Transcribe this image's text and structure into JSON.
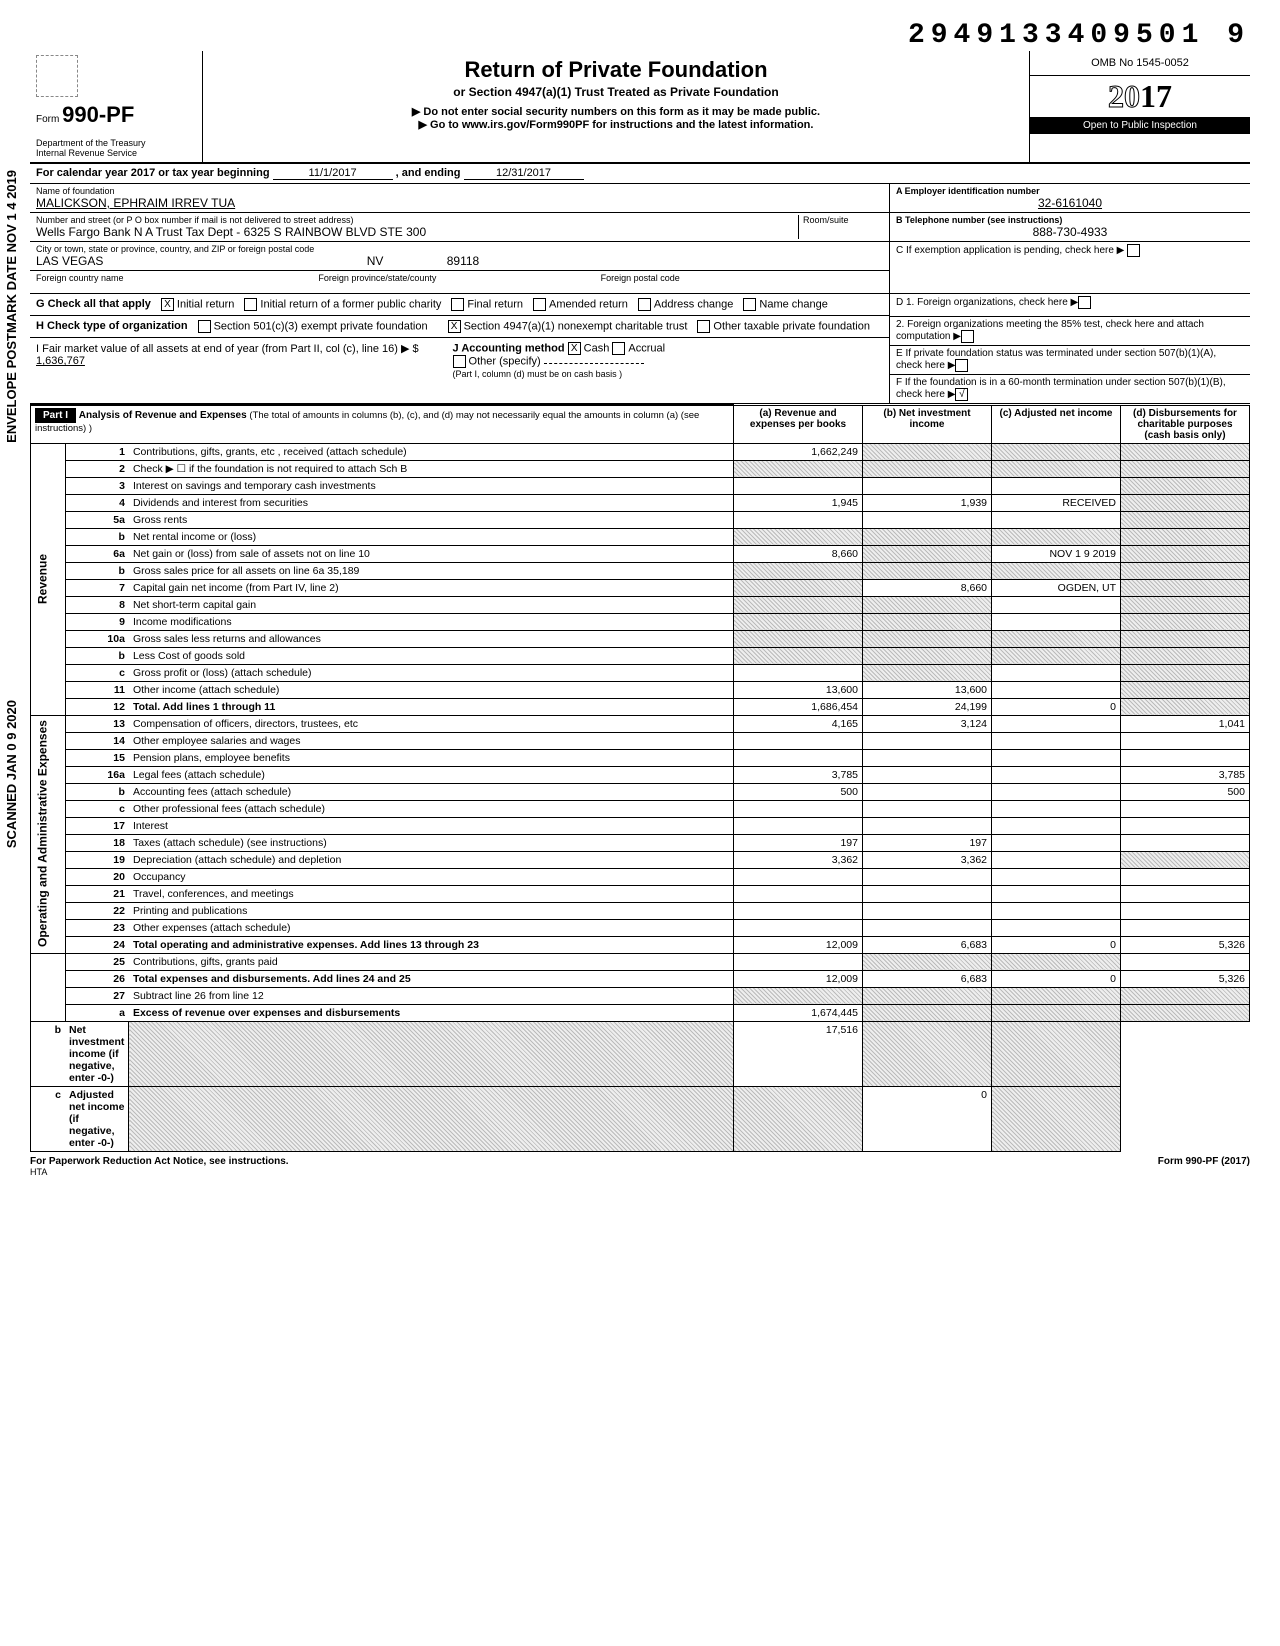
{
  "top_number": "2949133409501  9",
  "form_box": {
    "form_label": "Form",
    "form_no": "990-PF",
    "dept": "Department of the Treasury",
    "irs": "Internal Revenue Service"
  },
  "title": {
    "main": "Return of Private Foundation",
    "sub": "or Section 4947(a)(1) Trust Treated as Private Foundation",
    "note1": "▶  Do not enter social security numbers on this form as it may be made public.",
    "note2": "▶  Go to www.irs.gov/Form990PF for instructions and the latest information."
  },
  "omb": {
    "label": "OMB No 1545-0052",
    "year_outline": "20",
    "year_bold": "17",
    "inspect": "Open to Public Inspection"
  },
  "calendar": {
    "prefix": "For calendar year 2017 or tax year beginning",
    "begin": "11/1/2017",
    "mid": ", and ending",
    "end": "12/31/2017"
  },
  "name_block": {
    "name_label": "Name of foundation",
    "name": "MALICKSON, EPHRAIM IRREV TUA",
    "addr_label": "Number and street (or P O  box number if mail is not delivered to street address)",
    "addr": "Wells Fargo Bank N A  Trust Tax Dept - 6325 S RAINBOW BLVD STE 300",
    "city_label": "City or town, state or province, country, and ZIP or foreign postal code",
    "city": "LAS VEGAS",
    "state": "NV",
    "zip": "89118",
    "foreign_country_label": "Foreign country name",
    "foreign_prov_label": "Foreign province/state/county",
    "foreign_postal_label": "Foreign postal code",
    "room_label": "Room/suite"
  },
  "right_block": {
    "ein_label": "A  Employer identification number",
    "ein": "32-6161040",
    "tel_label": "B  Telephone number (see instructions)",
    "tel": "888-730-4933",
    "c_label": "C  If exemption application is pending, check here",
    "d1": "D  1. Foreign organizations, check here",
    "d2": "2. Foreign organizations meeting the 85% test, check here and attach computation",
    "e": "E  If private foundation status was terminated under section 507(b)(1)(A), check here",
    "f": "F  If the foundation is in a 60-month termination under section 507(b)(1)(B), check here"
  },
  "g_row": {
    "label": "G  Check all that apply",
    "opts": [
      "Initial return",
      "Initial return of a former public charity",
      "Final return",
      "Amended return",
      "Address change",
      "Name change"
    ],
    "checked": [
      true,
      false,
      false,
      false,
      false,
      false
    ]
  },
  "h_row": {
    "label": "H  Check type of organization",
    "opt1": "Section 501(c)(3) exempt private foundation",
    "opt2": "Section 4947(a)(1) nonexempt charitable trust",
    "opt3": "Other taxable private foundation",
    "checked2": true
  },
  "i_row": {
    "label": "I   Fair market value of all assets at end of year (from Part II, col (c), line 16) ▶ $",
    "value": "1,636,767"
  },
  "j_row": {
    "label": "J   Accounting method",
    "cash": "Cash",
    "accrual": "Accrual",
    "other": "Other (specify)",
    "note": "(Part I, column (d) must be on cash basis )",
    "cash_checked": true
  },
  "part1": {
    "hdr": "Part I",
    "title": "Analysis of Revenue and Expenses",
    "title_note": "(The total of amounts in columns (b), (c), and (d) may not necessarily equal the amounts in column (a) (see instructions) )",
    "cols": {
      "a": "(a) Revenue and expenses per books",
      "b": "(b) Net investment income",
      "c": "(c) Adjusted net income",
      "d": "(d) Disbursements for charitable purposes (cash basis only)"
    }
  },
  "side_labels": {
    "revenue": "Revenue",
    "expenses": "Operating and Administrative Expenses"
  },
  "rows": [
    {
      "ln": "1",
      "desc": "Contributions, gifts, grants, etc , received (attach schedule)",
      "a": "1,662,249",
      "b": "shade",
      "c": "shade",
      "d": "shade"
    },
    {
      "ln": "2",
      "desc": "Check ▶ ☐ if the foundation is not required to attach Sch B",
      "a": "shade",
      "b": "shade",
      "c": "shade",
      "d": "shade"
    },
    {
      "ln": "3",
      "desc": "Interest on savings and temporary cash investments",
      "a": "",
      "b": "",
      "c": "",
      "d": "shade"
    },
    {
      "ln": "4",
      "desc": "Dividends and interest from securities",
      "a": "1,945",
      "b": "1,939",
      "c": "RECEIVED",
      "d": "shade"
    },
    {
      "ln": "5a",
      "desc": "Gross rents",
      "a": "",
      "b": "",
      "c": "",
      "d": "shade"
    },
    {
      "ln": "b",
      "desc": "Net rental income or (loss)",
      "a": "shade",
      "b": "shade",
      "c": "shade",
      "d": "shade"
    },
    {
      "ln": "6a",
      "desc": "Net gain or (loss) from sale of assets not on line 10",
      "a": "8,660",
      "b": "shade",
      "c": "NOV 1 9 2019",
      "d": "shade"
    },
    {
      "ln": "b",
      "desc": "Gross sales price for all assets on line 6a                    35,189",
      "a": "shade",
      "b": "shade",
      "c": "shade",
      "d": "shade"
    },
    {
      "ln": "7",
      "desc": "Capital gain net income (from Part IV, line 2)",
      "a": "shade",
      "b": "8,660",
      "c": "OGDEN, UT",
      "d": "shade"
    },
    {
      "ln": "8",
      "desc": "Net short-term capital gain",
      "a": "shade",
      "b": "shade",
      "c": "",
      "d": "shade"
    },
    {
      "ln": "9",
      "desc": "Income modifications",
      "a": "shade",
      "b": "shade",
      "c": "",
      "d": "shade"
    },
    {
      "ln": "10a",
      "desc": "Gross sales less returns and allowances",
      "a": "shade",
      "b": "shade",
      "c": "shade",
      "d": "shade"
    },
    {
      "ln": "b",
      "desc": "Less Cost of goods sold",
      "a": "shade",
      "b": "shade",
      "c": "shade",
      "d": "shade"
    },
    {
      "ln": "c",
      "desc": "Gross profit or (loss) (attach schedule)",
      "a": "",
      "b": "shade",
      "c": "",
      "d": "shade"
    },
    {
      "ln": "11",
      "desc": "Other income (attach schedule)",
      "a": "13,600",
      "b": "13,600",
      "c": "",
      "d": "shade"
    },
    {
      "ln": "12",
      "desc": "Total.  Add lines 1 through 11",
      "a": "1,686,454",
      "b": "24,199",
      "c": "0",
      "d": "shade",
      "bold": true
    },
    {
      "ln": "13",
      "desc": "Compensation of officers, directors, trustees, etc",
      "a": "4,165",
      "b": "3,124",
      "c": "",
      "d": "1,041"
    },
    {
      "ln": "14",
      "desc": "Other employee salaries and wages",
      "a": "",
      "b": "",
      "c": "",
      "d": ""
    },
    {
      "ln": "15",
      "desc": "Pension plans, employee benefits",
      "a": "",
      "b": "",
      "c": "",
      "d": ""
    },
    {
      "ln": "16a",
      "desc": "Legal fees (attach schedule)",
      "a": "3,785",
      "b": "",
      "c": "",
      "d": "3,785"
    },
    {
      "ln": "b",
      "desc": "Accounting fees (attach schedule)",
      "a": "500",
      "b": "",
      "c": "",
      "d": "500"
    },
    {
      "ln": "c",
      "desc": "Other professional fees (attach schedule)",
      "a": "",
      "b": "",
      "c": "",
      "d": ""
    },
    {
      "ln": "17",
      "desc": "Interest",
      "a": "",
      "b": "",
      "c": "",
      "d": ""
    },
    {
      "ln": "18",
      "desc": "Taxes (attach schedule) (see instructions)",
      "a": "197",
      "b": "197",
      "c": "",
      "d": ""
    },
    {
      "ln": "19",
      "desc": "Depreciation (attach schedule) and depletion",
      "a": "3,362",
      "b": "3,362",
      "c": "",
      "d": "shade"
    },
    {
      "ln": "20",
      "desc": "Occupancy",
      "a": "",
      "b": "",
      "c": "",
      "d": ""
    },
    {
      "ln": "21",
      "desc": "Travel, conferences, and meetings",
      "a": "",
      "b": "",
      "c": "",
      "d": ""
    },
    {
      "ln": "22",
      "desc": "Printing and publications",
      "a": "",
      "b": "",
      "c": "",
      "d": ""
    },
    {
      "ln": "23",
      "desc": "Other expenses (attach schedule)",
      "a": "",
      "b": "",
      "c": "",
      "d": ""
    },
    {
      "ln": "24",
      "desc": "Total operating and administrative expenses. Add lines 13 through 23",
      "a": "12,009",
      "b": "6,683",
      "c": "0",
      "d": "5,326",
      "bold": true
    },
    {
      "ln": "25",
      "desc": "Contributions, gifts, grants paid",
      "a": "",
      "b": "shade",
      "c": "shade",
      "d": ""
    },
    {
      "ln": "26",
      "desc": "Total expenses and disbursements. Add lines 24 and 25",
      "a": "12,009",
      "b": "6,683",
      "c": "0",
      "d": "5,326",
      "bold": true
    },
    {
      "ln": "27",
      "desc": "Subtract line 26 from line 12",
      "a": "shade",
      "b": "shade",
      "c": "shade",
      "d": "shade"
    },
    {
      "ln": "a",
      "desc": "Excess of revenue over expenses and disbursements",
      "a": "1,674,445",
      "b": "shade",
      "c": "shade",
      "d": "shade",
      "bold": true
    },
    {
      "ln": "b",
      "desc": "Net investment income (if negative, enter -0-)",
      "a": "shade",
      "b": "17,516",
      "c": "shade",
      "d": "shade",
      "bold": true
    },
    {
      "ln": "c",
      "desc": "Adjusted net income (if negative, enter -0-)",
      "a": "shade",
      "b": "shade",
      "c": "0",
      "d": "shade",
      "bold": true
    }
  ],
  "footer": {
    "left": "For Paperwork Reduction Act Notice, see instructions.",
    "hta": "HTA",
    "right": "Form 990-PF (2017)"
  },
  "margins": {
    "postmark": "ENVELOPE\nPOSTMARK DATE  NOV 1 4 2019",
    "scanned": "SCANNED  JAN 0 9 2020"
  }
}
